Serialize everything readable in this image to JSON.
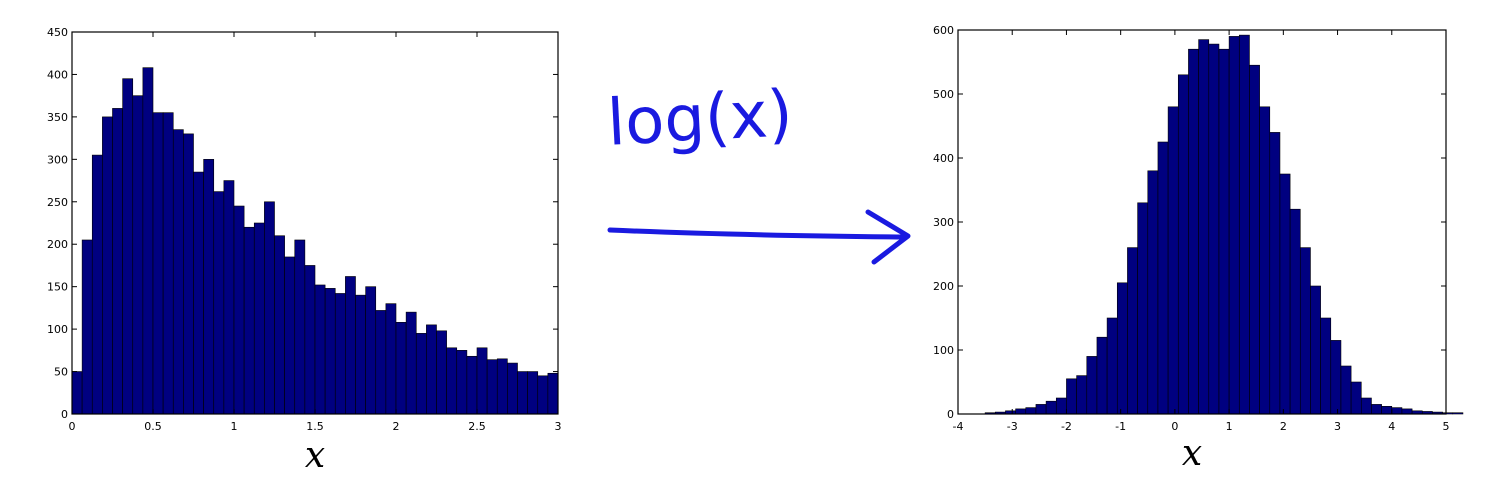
{
  "annotation": {
    "text": "log(x)",
    "arrow": "right-arrow",
    "color": "#1a1ae0"
  },
  "chart_data": [
    {
      "type": "bar",
      "xlabel": "x",
      "ylabel": "",
      "xlim": [
        0,
        3
      ],
      "ylim": [
        0,
        450
      ],
      "xticks": [
        "0",
        "0.5",
        "1",
        "1.5",
        "2",
        "2.5",
        "3"
      ],
      "yticks": [
        "0",
        "50",
        "100",
        "150",
        "200",
        "250",
        "300",
        "350",
        "400",
        "450"
      ],
      "bar_color": "#000080",
      "bin_edges_start": 0,
      "bin_width": 0.0625,
      "values": [
        50,
        205,
        305,
        350,
        360,
        395,
        375,
        408,
        355,
        355,
        335,
        330,
        285,
        300,
        262,
        275,
        245,
        220,
        225,
        250,
        210,
        185,
        205,
        175,
        152,
        148,
        142,
        162,
        140,
        150,
        122,
        130,
        108,
        120,
        95,
        105,
        98,
        78,
        75,
        68,
        78,
        64,
        65,
        60,
        50,
        50,
        45,
        48
      ]
    },
    {
      "type": "bar",
      "xlabel": "x",
      "ylabel": "",
      "xlim": [
        -4,
        5
      ],
      "ylim": [
        0,
        600
      ],
      "xticks": [
        "-4",
        "-3",
        "-2",
        "-1",
        "0",
        "1",
        "2",
        "3",
        "4",
        "5"
      ],
      "yticks": [
        "0",
        "100",
        "200",
        "300",
        "400",
        "500",
        "600"
      ],
      "bar_color": "#000080",
      "bin_edges_start": -3.5,
      "bin_width": 0.1875,
      "values": [
        2,
        3,
        5,
        8,
        10,
        15,
        20,
        25,
        55,
        60,
        90,
        120,
        150,
        205,
        260,
        330,
        380,
        425,
        480,
        530,
        570,
        585,
        578,
        570,
        590,
        592,
        545,
        480,
        440,
        375,
        320,
        260,
        200,
        150,
        115,
        75,
        50,
        25,
        15,
        12,
        10,
        8,
        5,
        4,
        3,
        2,
        2
      ]
    }
  ]
}
